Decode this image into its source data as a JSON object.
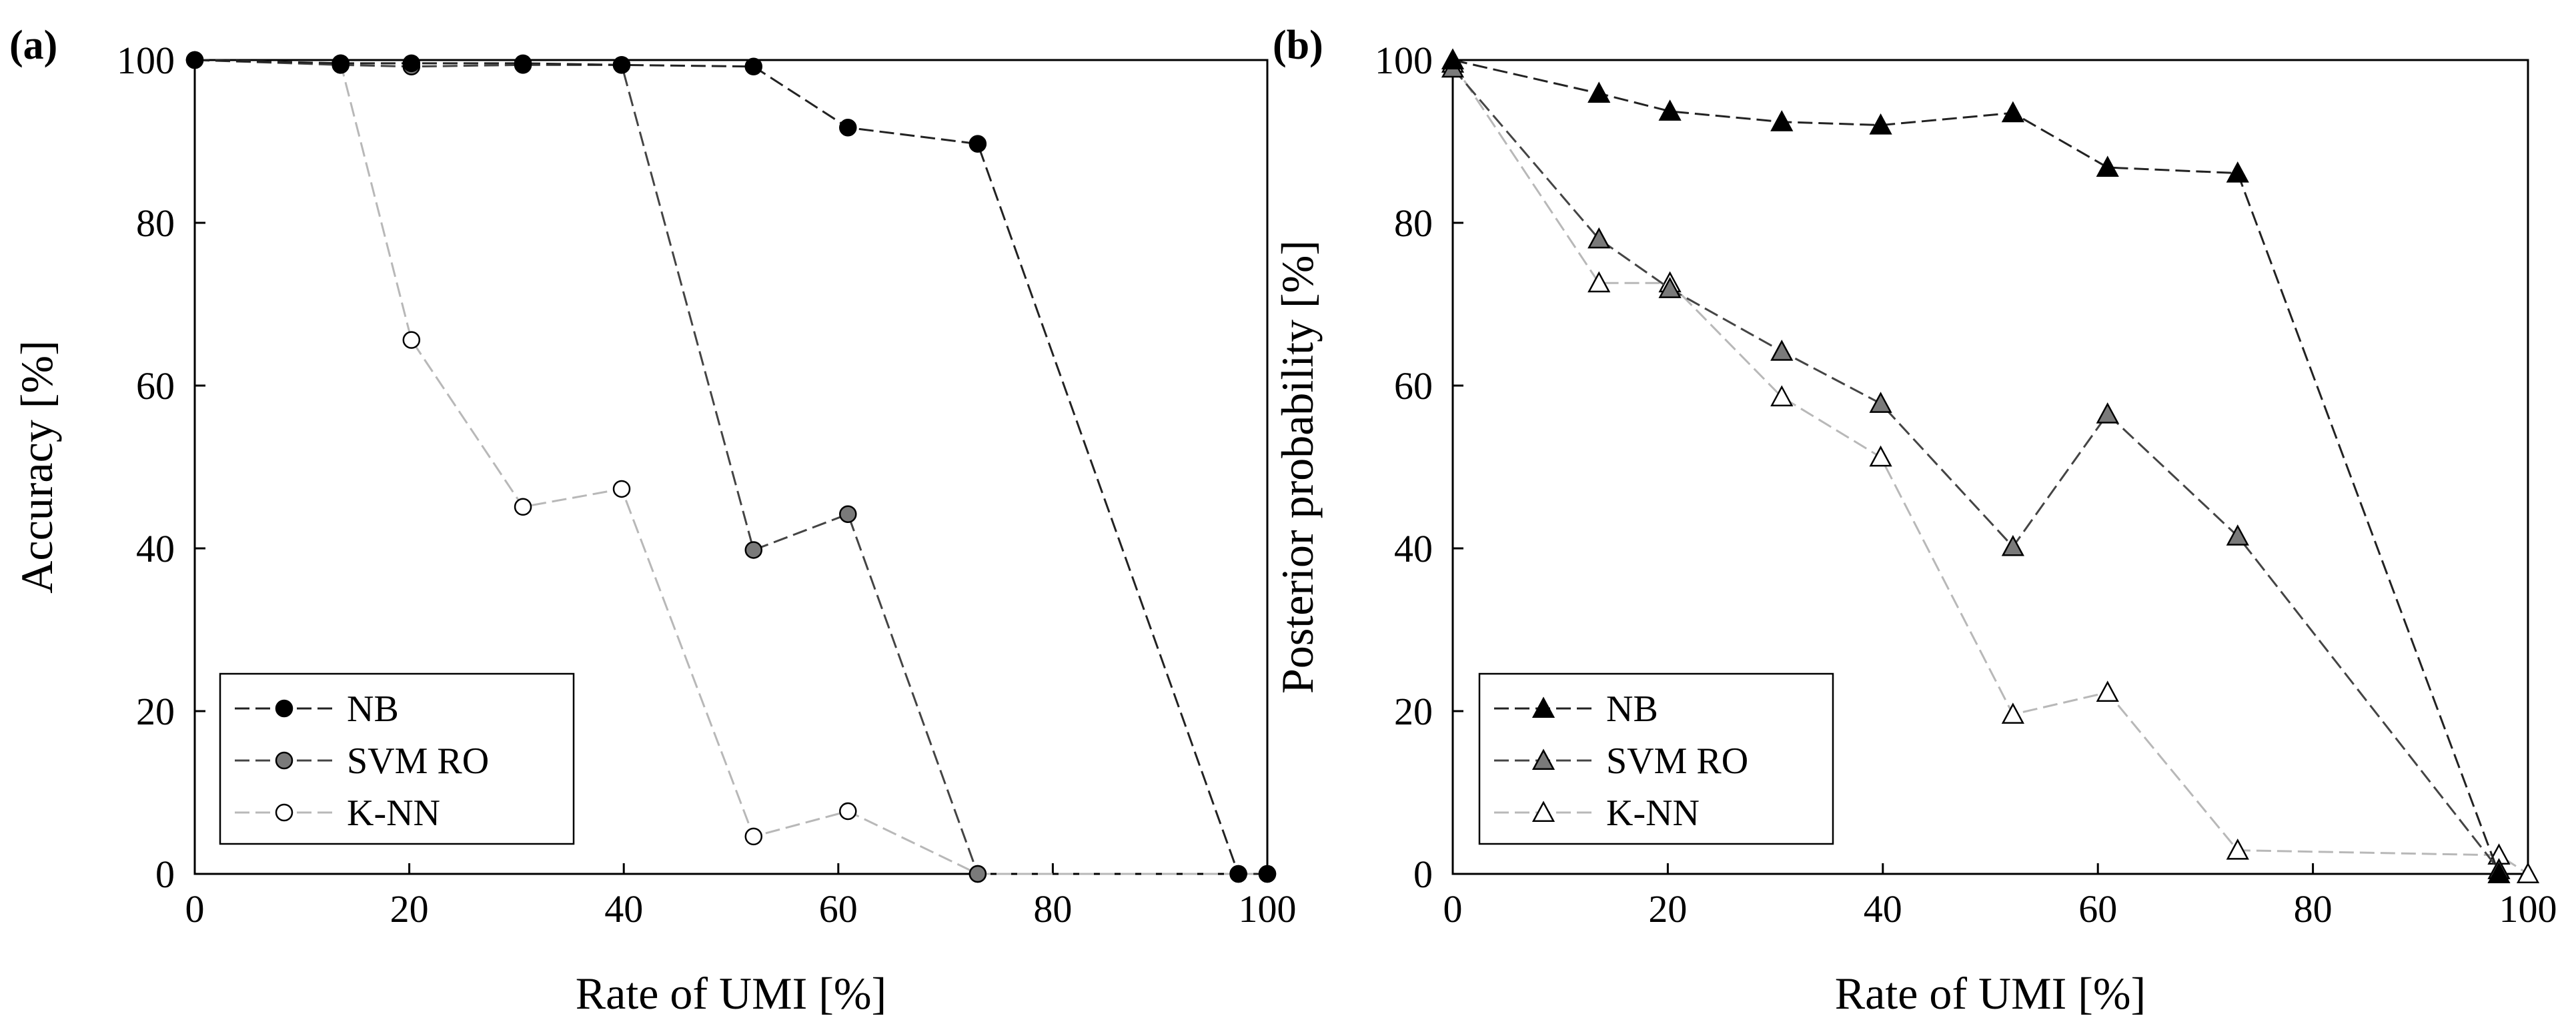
{
  "chart_data": [
    {
      "type": "line",
      "panel_label": "(a)",
      "xlabel": "Rate of UMI [%]",
      "ylabel": "Accuracy [%]",
      "xlim": [
        0,
        100
      ],
      "ylim": [
        0,
        100
      ],
      "xticks": [
        0,
        20,
        40,
        60,
        80,
        100
      ],
      "yticks": [
        0,
        20,
        40,
        60,
        80,
        100
      ],
      "marker": "circle",
      "legend_position": "lower-left",
      "series": [
        {
          "name": "NB",
          "color": "#000000",
          "line_color": "#222222",
          "x": [
            0,
            13.6,
            20.2,
            30.6,
            39.8,
            52.1,
            60.9,
            73,
            97.3,
            100
          ],
          "y": [
            100,
            99.6,
            99.6,
            99.6,
            99.4,
            99.2,
            91.7,
            89.7,
            0,
            0
          ]
        },
        {
          "name": "SVM RO",
          "color": "#7a7a7a",
          "line_color": "#444444",
          "x": [
            0,
            13.6,
            20.2,
            30.6,
            39.8,
            52.1,
            60.9,
            73
          ],
          "y": [
            100,
            99.4,
            99.2,
            99.4,
            99.4,
            39.8,
            44.2,
            0
          ]
        },
        {
          "name": "K-NN",
          "color": "#ffffff",
          "line_color": "#b8b8b8",
          "x": [
            0,
            13.6,
            20.2,
            30.6,
            39.8,
            52.1,
            60.9,
            73,
            97.3,
            100
          ],
          "y": [
            100,
            99.6,
            65.6,
            45.1,
            47.3,
            4.6,
            7.7,
            0,
            0,
            0
          ]
        }
      ]
    },
    {
      "type": "line",
      "panel_label": "(b)",
      "xlabel": "Rate of UMI [%]",
      "ylabel": "Posterior probability [%]",
      "xlim": [
        0,
        100
      ],
      "ylim": [
        0,
        100
      ],
      "xticks": [
        0,
        20,
        40,
        60,
        80,
        100
      ],
      "yticks": [
        0,
        20,
        40,
        60,
        80,
        100
      ],
      "marker": "triangle",
      "legend_position": "lower-left",
      "series": [
        {
          "name": "NB",
          "color": "#000000",
          "line_color": "#222222",
          "x": [
            0,
            13.6,
            20.2,
            30.6,
            39.8,
            52.1,
            60.9,
            73,
            97.3
          ],
          "y": [
            100,
            95.9,
            93.7,
            92.4,
            92,
            93.5,
            86.8,
            86.1,
            0
          ]
        },
        {
          "name": "SVM RO",
          "color": "#7a7a7a",
          "line_color": "#444444",
          "x": [
            0,
            13.6,
            20.2,
            30.6,
            39.8,
            52.1,
            60.9,
            73,
            97.3
          ],
          "y": [
            99,
            78,
            71.9,
            64.2,
            57.8,
            40.2,
            56.5,
            41.5,
            0.5
          ]
        },
        {
          "name": "K-NN",
          "color": "#ffffff",
          "line_color": "#b8b8b8",
          "x": [
            0,
            13.6,
            20.2,
            30.6,
            39.8,
            52.1,
            60.9,
            73,
            97.3,
            100
          ],
          "y": [
            99.6,
            72.6,
            72.6,
            58.6,
            51.2,
            19.6,
            22.3,
            2.9,
            2.3,
            0
          ]
        }
      ]
    }
  ]
}
